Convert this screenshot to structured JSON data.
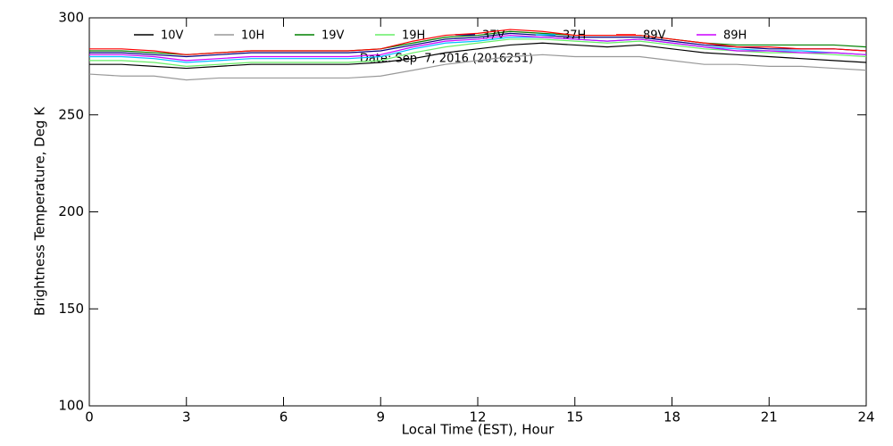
{
  "chart_data": {
    "type": "line",
    "subtitle": "Date: Sep  7, 2016 (2016251)",
    "x_label": "Local Time (EST), Hour",
    "y_label": "Brightness Temperature, Deg K",
    "xlim": [
      0,
      24
    ],
    "xticks": [
      0,
      3,
      6,
      9,
      12,
      15,
      18,
      21,
      24
    ],
    "ylim": [
      100,
      300
    ],
    "yticks": [
      100,
      150,
      200,
      250,
      300
    ],
    "x": [
      0,
      1,
      2,
      3,
      4,
      5,
      6,
      7,
      8,
      9,
      10,
      11,
      12,
      13,
      14,
      15,
      16,
      17,
      18,
      19,
      20,
      21,
      22,
      23,
      24
    ],
    "series": [
      {
        "name": "10V",
        "color": "#000000",
        "values": [
          276,
          276,
          275,
          274,
          275,
          276,
          276,
          276,
          276,
          277,
          279,
          282,
          284,
          286,
          287,
          286,
          285,
          286,
          284,
          282,
          281,
          280,
          279,
          278,
          277
        ]
      },
      {
        "name": "10H",
        "color": "#999999",
        "values": [
          271,
          270,
          270,
          268,
          269,
          269,
          269,
          269,
          269,
          270,
          273,
          276,
          278,
          280,
          281,
          280,
          280,
          280,
          278,
          276,
          276,
          275,
          275,
          274,
          273
        ]
      },
      {
        "name": "19V",
        "color": "#008000",
        "values": [
          283,
          283,
          282,
          281,
          282,
          283,
          283,
          283,
          283,
          284,
          287,
          290,
          291,
          293,
          292,
          291,
          291,
          291,
          289,
          287,
          286,
          286,
          286,
          286,
          285
        ]
      },
      {
        "name": "19H",
        "color": "#66ee66",
        "values": [
          278,
          278,
          277,
          275,
          276,
          277,
          277,
          277,
          277,
          278,
          282,
          285,
          287,
          289,
          289,
          288,
          287,
          288,
          286,
          284,
          283,
          282,
          282,
          281,
          280
        ]
      },
      {
        "name": "37V",
        "color": "#000080",
        "values": [
          282,
          282,
          281,
          280,
          281,
          282,
          282,
          282,
          282,
          283,
          286,
          289,
          290,
          292,
          291,
          290,
          290,
          290,
          288,
          286,
          285,
          284,
          284,
          284,
          283
        ]
      },
      {
        "name": "37H",
        "color": "#00bfff",
        "values": [
          280,
          280,
          279,
          277,
          278,
          279,
          279,
          279,
          279,
          280,
          284,
          287,
          288,
          290,
          290,
          289,
          288,
          289,
          287,
          285,
          284,
          283,
          283,
          282,
          281
        ]
      },
      {
        "name": "89V",
        "color": "#ff0000",
        "values": [
          284,
          284,
          283,
          281,
          282,
          283,
          283,
          283,
          283,
          284,
          288,
          291,
          292,
          294,
          293,
          291,
          291,
          291,
          289,
          287,
          285,
          285,
          284,
          284,
          283
        ]
      },
      {
        "name": "89H",
        "color": "#cc00ff",
        "values": [
          281,
          281,
          280,
          278,
          279,
          280,
          280,
          280,
          280,
          281,
          285,
          288,
          289,
          291,
          290,
          289,
          288,
          289,
          287,
          285,
          283,
          283,
          282,
          282,
          281
        ]
      }
    ]
  }
}
